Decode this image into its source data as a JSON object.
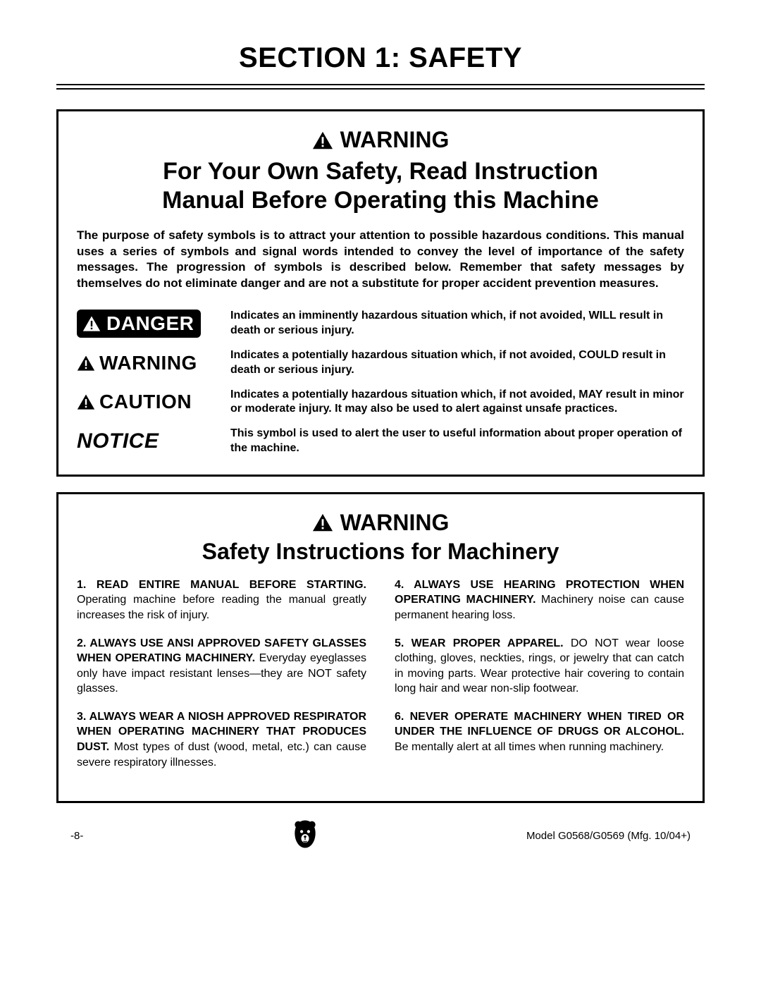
{
  "page": {
    "section_title": "SECTION 1: SAFETY",
    "page_number": "-8-",
    "model_footer": "Model G0568/G0569 (Mfg. 10/04+)"
  },
  "colors": {
    "text": "#000000",
    "background": "#ffffff",
    "border": "#000000",
    "logo_fill": "#000000"
  },
  "box1": {
    "head_label": "WARNING",
    "subhead_line1": "For Your Own Safety, Read Instruction",
    "subhead_line2": "Manual Before Operating this Machine",
    "intro": "The purpose of safety symbols is to attract your attention to possible hazardous conditions. This manual uses a series of symbols and signal words intended to convey the level of importance of the safety messages. The progression of symbols is described below. Remember that safety messages by themselves do not eliminate danger and are not a substitute for proper accident prevention measures.",
    "symbols": {
      "danger": {
        "label": "DANGER",
        "desc": "Indicates an imminently hazardous situation which, if not avoided, WILL result in death or serious injury."
      },
      "warning": {
        "label": "WARNING",
        "desc": "Indicates a potentially hazardous situation which, if not avoided, COULD result in death or serious injury."
      },
      "caution": {
        "label": "CAUTION",
        "desc": "Indicates a potentially hazardous situation which, if not avoided, MAY result in minor or moderate injury. It may also be used to alert against unsafe practices."
      },
      "notice": {
        "label": "NOTICE",
        "desc": "This symbol is used to alert the user to useful information about proper operation of the machine."
      }
    }
  },
  "box2": {
    "head_label": "WARNING",
    "subhead": "Safety Instructions for Machinery",
    "left_items": [
      {
        "num": "1.",
        "lead": "READ ENTIRE MANUAL BEFORE STARTING.",
        "body": " Operating machine before reading the manual greatly increases the risk of injury."
      },
      {
        "num": "2.",
        "lead": "ALWAYS USE ANSI APPROVED SAFETY GLASSES WHEN OPERATING MACHINERY.",
        "body": " Everyday eyeglasses only have impact resistant lenses—they are NOT safety glasses."
      },
      {
        "num": "3.",
        "lead": "ALWAYS WEAR A NIOSH APPROVED RESPIRATOR WHEN OPERATING MACHINERY THAT PRODUCES DUST.",
        "body": " Most types of dust (wood, metal, etc.) can cause severe respiratory illnesses."
      }
    ],
    "right_items": [
      {
        "num": "4.",
        "lead": "ALWAYS USE HEARING PROTECTION WHEN OPERATING MACHINERY.",
        "body": " Machinery noise can cause permanent hearing loss."
      },
      {
        "num": "5.",
        "lead": "WEAR PROPER APPAREL.",
        "body": " DO NOT wear loose clothing, gloves, neckties, rings, or jewelry that can catch in moving parts. Wear protective hair covering to contain long hair and wear non-slip footwear."
      },
      {
        "num": "6.",
        "lead": "NEVER OPERATE MACHINERY WHEN TIRED OR UNDER THE INFLUENCE OF DRUGS OR ALCOHOL.",
        "body": " Be mentally alert at all times when running machinery."
      }
    ]
  }
}
